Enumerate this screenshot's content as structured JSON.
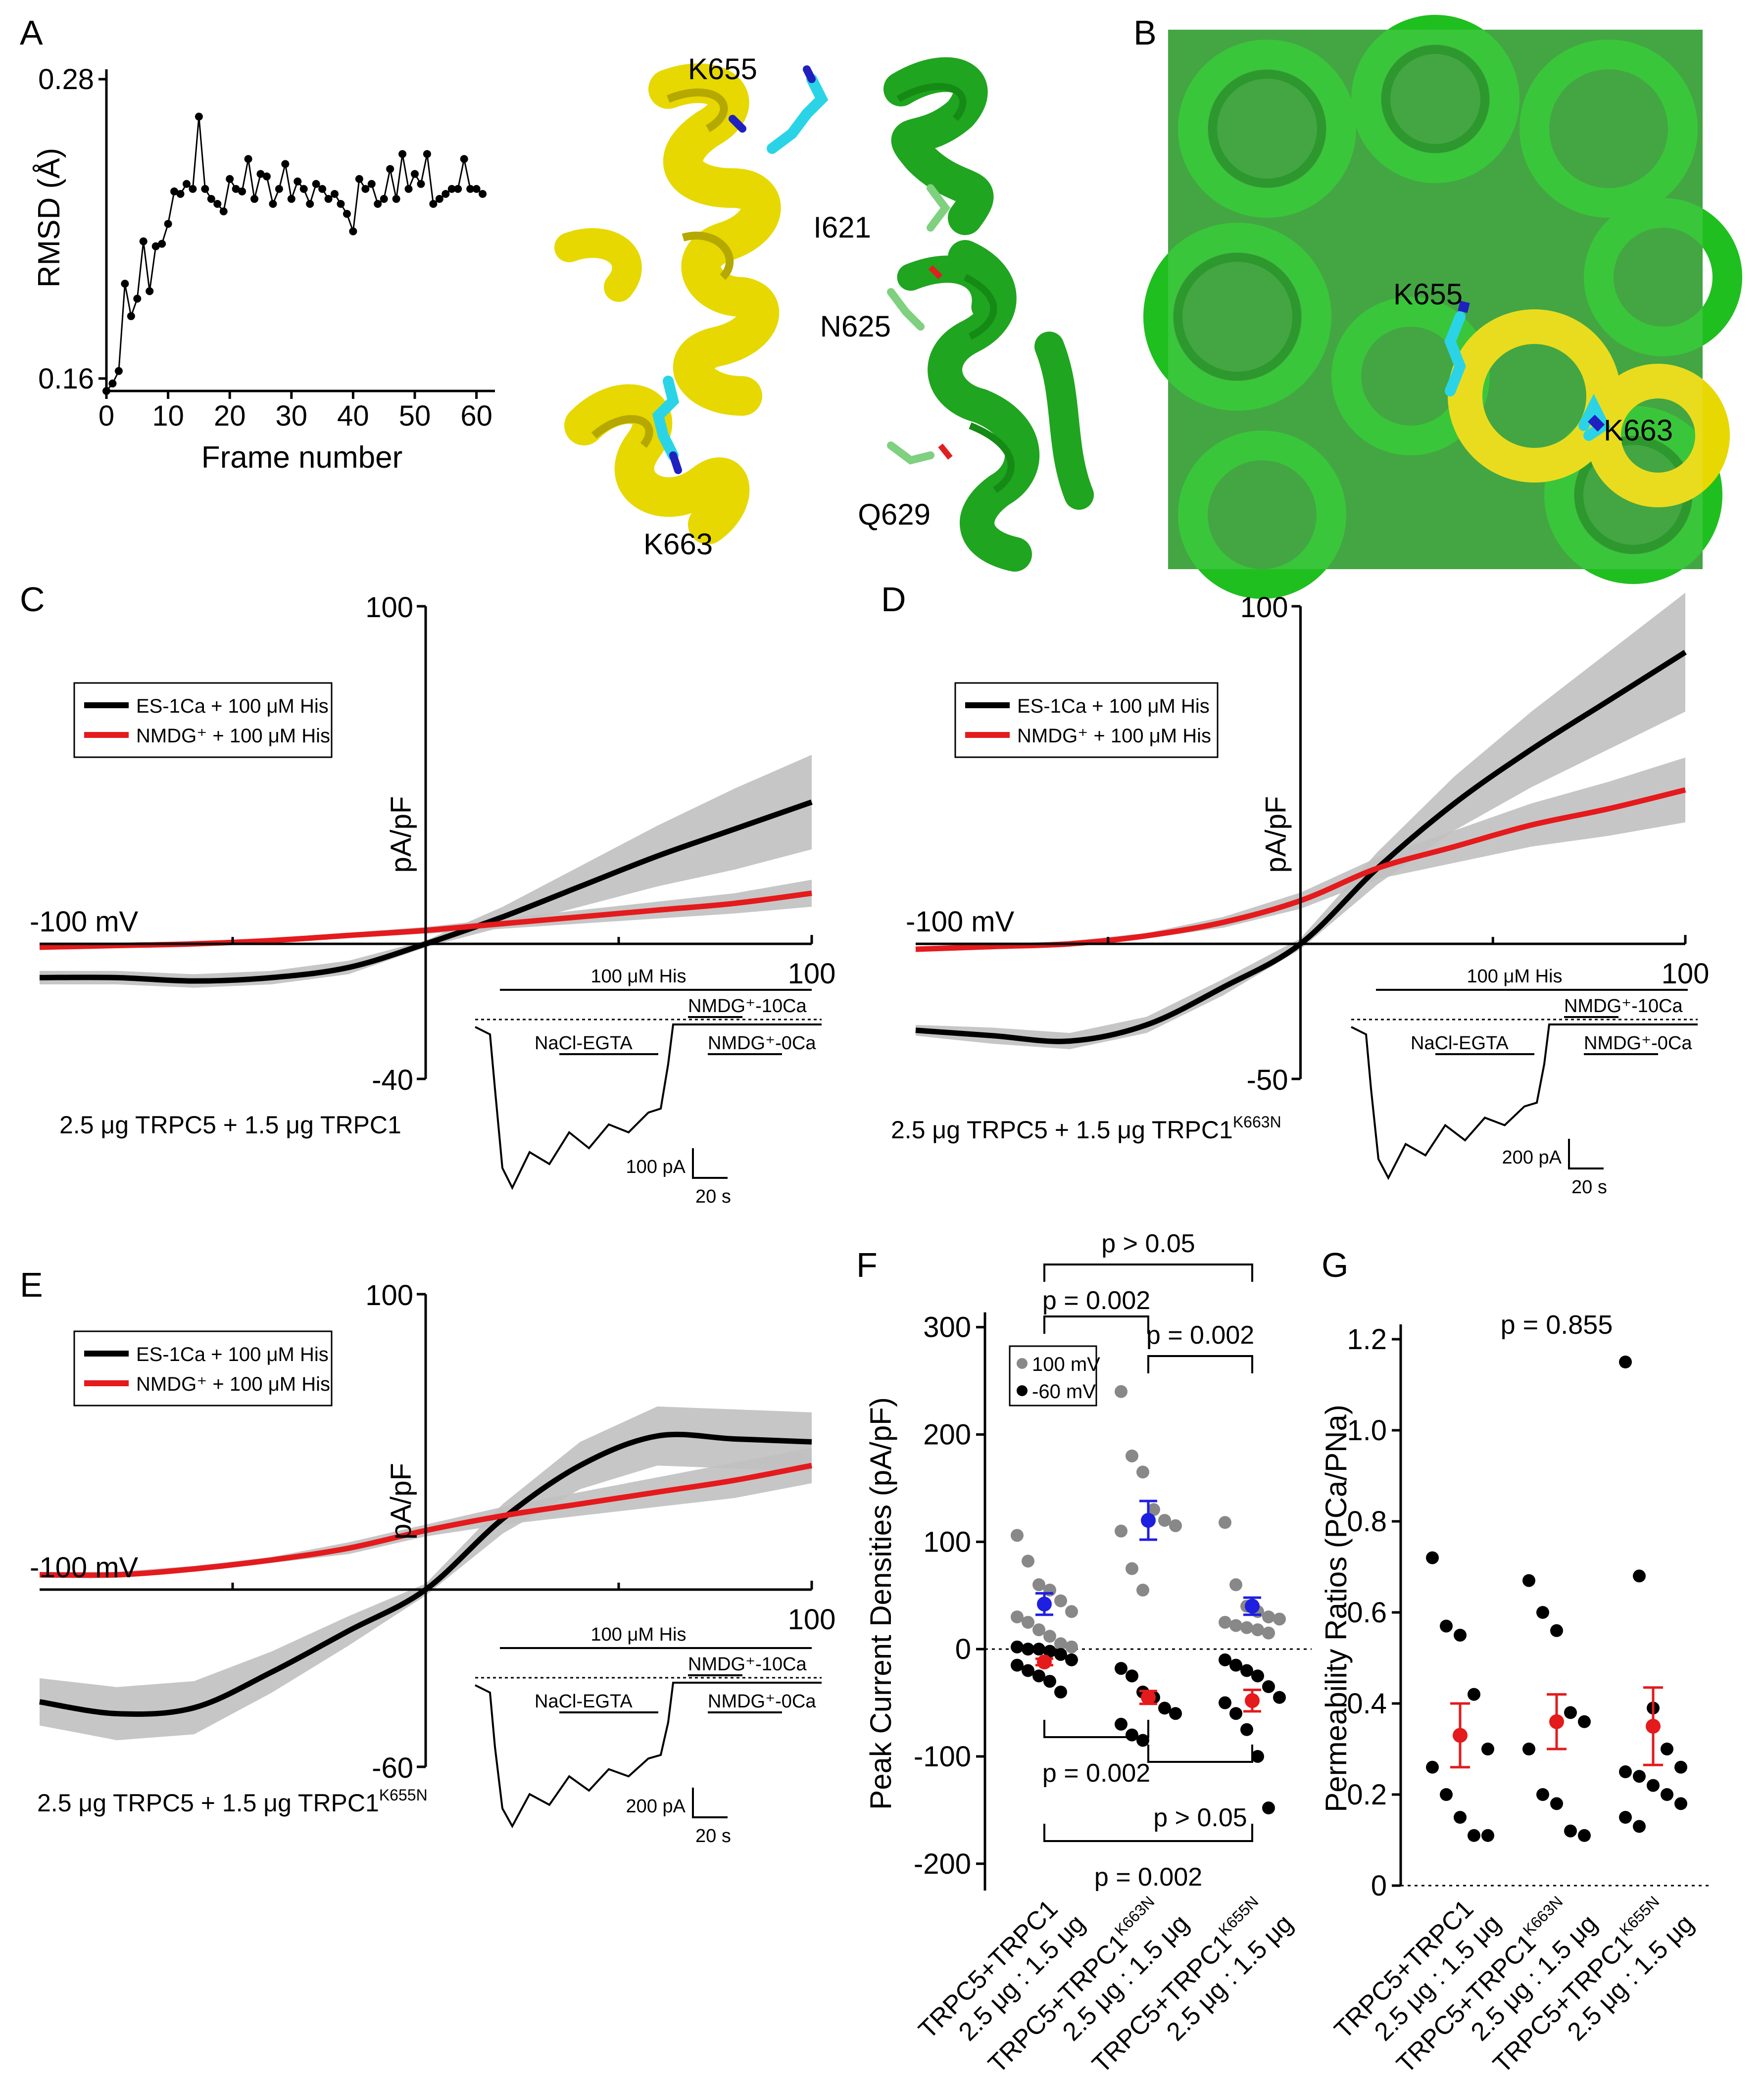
{
  "colors": {
    "black": "#000000",
    "red": "#e41a1c",
    "grey": "#c0c0c0",
    "blue": "#1f1fe0",
    "green": "#1fa51f",
    "yellow": "#e6d800",
    "cyan": "#2ad4e6"
  },
  "panelA": {
    "letter": "A",
    "chart_data": {
      "type": "line",
      "xlabel": "Frame number",
      "ylabel": "RMSD (Å)",
      "xlim": [
        0,
        63
      ],
      "ylim": [
        0.155,
        0.28
      ],
      "xticks": [
        "0",
        "10",
        "20",
        "30",
        "40",
        "50",
        "60"
      ],
      "yticks": [
        "0.16",
        "0.28"
      ],
      "x": [
        0,
        1,
        2,
        3,
        4,
        5,
        6,
        7,
        8,
        9,
        10,
        11,
        12,
        13,
        14,
        15,
        16,
        17,
        18,
        19,
        20,
        21,
        22,
        23,
        24,
        25,
        26,
        27,
        28,
        29,
        30,
        31,
        32,
        33,
        34,
        35,
        36,
        37,
        38,
        39,
        40,
        41,
        42,
        43,
        44,
        45,
        46,
        47,
        48,
        49,
        50,
        51,
        52,
        53,
        54,
        55,
        56,
        57,
        58,
        59,
        60,
        61
      ],
      "y": [
        0.155,
        0.158,
        0.163,
        0.198,
        0.185,
        0.192,
        0.215,
        0.195,
        0.213,
        0.214,
        0.222,
        0.235,
        0.234,
        0.238,
        0.236,
        0.265,
        0.236,
        0.232,
        0.23,
        0.227,
        0.24,
        0.236,
        0.235,
        0.248,
        0.232,
        0.242,
        0.241,
        0.23,
        0.236,
        0.246,
        0.232,
        0.239,
        0.236,
        0.23,
        0.238,
        0.236,
        0.232,
        0.234,
        0.23,
        0.226,
        0.219,
        0.24,
        0.236,
        0.238,
        0.23,
        0.232,
        0.244,
        0.232,
        0.25,
        0.236,
        0.242,
        0.238,
        0.25,
        0.23,
        0.232,
        0.234,
        0.236,
        0.236,
        0.248,
        0.236,
        0.236,
        0.234
      ]
    },
    "labels": [
      "K655",
      "I621",
      "N625",
      "Q629",
      "K663"
    ]
  },
  "panelB": {
    "letter": "B",
    "labels": [
      "K655",
      "K663"
    ]
  },
  "panelC": {
    "letter": "C",
    "ylabel": "pA/pF",
    "ytop": "100",
    "ybottom": "-40",
    "xleft": "-100 mV",
    "xright": "100",
    "legend": [
      "ES-1Ca + 100 μM His",
      "NMDG⁺ + 100 μM His"
    ],
    "caption": "2.5 μg TRPC5 + 1.5 μg TRPC1",
    "caption_sup": "",
    "chart_data": {
      "type": "line",
      "xlim": [
        -100,
        100
      ],
      "ylim": [
        -40,
        100
      ],
      "x": [
        -100,
        -80,
        -60,
        -40,
        -20,
        0,
        20,
        40,
        60,
        80,
        100
      ],
      "series": [
        {
          "name": "ES-1Ca + 100 μM His",
          "y": [
            -10,
            -10,
            -11,
            -10,
            -7,
            0,
            8,
            17,
            26,
            34,
            42
          ],
          "sem": [
            2,
            2,
            2,
            2,
            2,
            1,
            3,
            6,
            9,
            12,
            14
          ]
        },
        {
          "name": "NMDG⁺ + 100 μM His",
          "y": [
            -1,
            -0.5,
            0,
            1,
            2.5,
            4,
            6,
            8,
            10,
            12,
            15
          ],
          "sem": [
            0.5,
            0.5,
            0.5,
            0.5,
            0.8,
            1,
            1.5,
            2,
            2.5,
            3,
            4
          ]
        }
      ]
    },
    "inset": {
      "his": "100 μM His",
      "nmdg10": "NMDG⁺-10Ca",
      "egta": "NaCl-EGTA",
      "nmdg0": "NMDG⁺-0Ca",
      "scale_i": "100 pA",
      "scale_t": "20 s"
    }
  },
  "panelD": {
    "letter": "D",
    "ylabel": "pA/pF",
    "ytop": "100",
    "ybottom": "-50",
    "xleft": "-100 mV",
    "xright": "100",
    "legend": [
      "ES-1Ca + 100 μM His",
      "NMDG⁺ + 100 μM His"
    ],
    "caption": "2.5 μg TRPC5 + 1.5 μg TRPC1",
    "caption_sup": "K663N",
    "chart_data": {
      "type": "line",
      "xlim": [
        -100,
        100
      ],
      "ylim": [
        -50,
        125
      ],
      "x": [
        -100,
        -80,
        -60,
        -40,
        -20,
        0,
        20,
        40,
        60,
        80,
        100
      ],
      "series": [
        {
          "name": "ES-1Ca + 100 μM His",
          "y": [
            -32,
            -34,
            -36,
            -30,
            -16,
            0,
            28,
            52,
            72,
            90,
            108
          ],
          "sem": [
            2,
            3,
            3,
            3,
            3,
            2,
            6,
            10,
            14,
            18,
            22
          ]
        },
        {
          "name": "NMDG⁺ + 100 μM His",
          "y": [
            -2,
            -1,
            0,
            3,
            8,
            16,
            28,
            36,
            44,
            50,
            57
          ],
          "sem": [
            1,
            1,
            1,
            1,
            2,
            3,
            4,
            6,
            8,
            10,
            12
          ]
        }
      ]
    },
    "inset": {
      "his": "100 μM His",
      "nmdg10": "NMDG⁺-10Ca",
      "egta": "NaCl-EGTA",
      "nmdg0": "NMDG⁺-0Ca",
      "scale_i": "200 pA",
      "scale_t": "20 s"
    }
  },
  "panelE": {
    "letter": "E",
    "ylabel": "pA/pF",
    "ytop": "100",
    "ybottom": "-60",
    "xleft": "-100 mV",
    "xright": "100",
    "legend": [
      "ES-1Ca + 100 μM His",
      "NMDG⁺ + 100 μM His"
    ],
    "caption": "2.5 μg TRPC5 + 1.5 μg TRPC1",
    "caption_sup": "K655N",
    "chart_data": {
      "type": "line",
      "xlim": [
        -100,
        100
      ],
      "ylim": [
        -60,
        100
      ],
      "x": [
        -100,
        -80,
        -60,
        -40,
        -20,
        0,
        20,
        40,
        60,
        80,
        100
      ],
      "series": [
        {
          "name": "ES-1Ca + 100 μM His",
          "y": [
            -38,
            -42,
            -40,
            -28,
            -14,
            0,
            24,
            42,
            52,
            51,
            50
          ],
          "sem": [
            8,
            9,
            9,
            7,
            5,
            2,
            5,
            8,
            10,
            10,
            10
          ]
        },
        {
          "name": "NMDG⁺ + 100 μM His",
          "y": [
            5,
            5,
            7,
            10,
            14,
            20,
            25,
            29,
            33,
            37,
            42
          ],
          "sem": [
            1,
            1,
            1,
            1,
            2,
            2,
            3,
            4,
            5,
            6,
            6
          ]
        }
      ]
    },
    "inset": {
      "his": "100 μM His",
      "nmdg10": "NMDG⁺-10Ca",
      "egta": "NaCl-EGTA",
      "nmdg0": "NMDG⁺-0Ca",
      "scale_i": "200 pA",
      "scale_t": "20 s"
    }
  },
  "panelF": {
    "letter": "F",
    "ylabel": "Peak Current Densities (pA/pF)",
    "yticks": [
      "-200",
      "-100",
      "0",
      "100",
      "200",
      "300"
    ],
    "legend": [
      "100 mV",
      "-60 mV"
    ],
    "pvals": [
      "p > 0.05",
      "p = 0.002",
      "p = 0.002",
      "p = 0.002",
      "p > 0.05",
      "p = 0.002"
    ],
    "chart_data": {
      "type": "scatter",
      "ylim": [
        -225,
        310
      ],
      "groups": [
        "TRPC5+TRPC1",
        "TRPC5+TRPC1",
        "TRPC5+TRPC1"
      ],
      "group_sup": [
        "",
        "K663N",
        "K655N"
      ],
      "group_sub": [
        "2.5 μg : 1.5 μg",
        "2.5 μg : 1.5 μg",
        "2.5 μg : 1.5 μg"
      ],
      "series": [
        {
          "name": "100 mV",
          "values": [
            [
              106,
              82,
              60,
              55,
              45,
              35,
              30,
              25,
              18,
              12,
              5,
              2
            ],
            [
              240,
              180,
              165,
              130,
              120,
              115,
              110,
              75,
              55
            ],
            [
              118,
              60,
              40,
              35,
              30,
              28,
              25,
              22,
              20,
              18,
              15
            ]
          ],
          "mean": [
            42,
            120,
            40
          ],
          "sem": [
            10,
            18,
            8
          ]
        },
        {
          "name": "-60 mV",
          "values": [
            [
              2,
              0,
              0,
              -2,
              -5,
              -10,
              -15,
              -20,
              -25,
              -30,
              -40
            ],
            [
              -18,
              -25,
              -40,
              -45,
              -55,
              -60,
              -70,
              -80,
              -85
            ],
            [
              -10,
              -15,
              -20,
              -25,
              -35,
              -45,
              -50,
              -60,
              -75,
              -100,
              -148
            ]
          ],
          "mean": [
            -12,
            -45,
            -48
          ],
          "sem": [
            3,
            6,
            10
          ]
        }
      ]
    }
  },
  "panelG": {
    "letter": "G",
    "ylabel": "Permeability Ratios (PCa/PNa)",
    "yticks": [
      "0",
      "0.2",
      "0.4",
      "0.6",
      "0.8",
      "1.0",
      "1.2"
    ],
    "pval": "p = 0.855",
    "chart_data": {
      "type": "scatter",
      "ylim": [
        0,
        1.25
      ],
      "groups": [
        "TRPC5+TRPC1",
        "TRPC5+TRPC1",
        "TRPC5+TRPC1"
      ],
      "group_sup": [
        "",
        "K663N",
        "K655N"
      ],
      "group_sub": [
        "2.5 μg : 1.5 μg",
        "2.5 μg : 1.5 μg",
        "2.5 μg : 1.5 μg"
      ],
      "values": [
        [
          0.72,
          0.57,
          0.55,
          0.42,
          0.3,
          0.26,
          0.2,
          0.15,
          0.11,
          0.11
        ],
        [
          0.67,
          0.6,
          0.56,
          0.38,
          0.36,
          0.3,
          0.2,
          0.18,
          0.12,
          0.11
        ],
        [
          1.15,
          0.68,
          0.39,
          0.3,
          0.26,
          0.25,
          0.24,
          0.22,
          0.2,
          0.18,
          0.15,
          0.13
        ]
      ],
      "mean": [
        0.33,
        0.36,
        0.35
      ],
      "sem": [
        0.07,
        0.06,
        0.085
      ]
    }
  }
}
